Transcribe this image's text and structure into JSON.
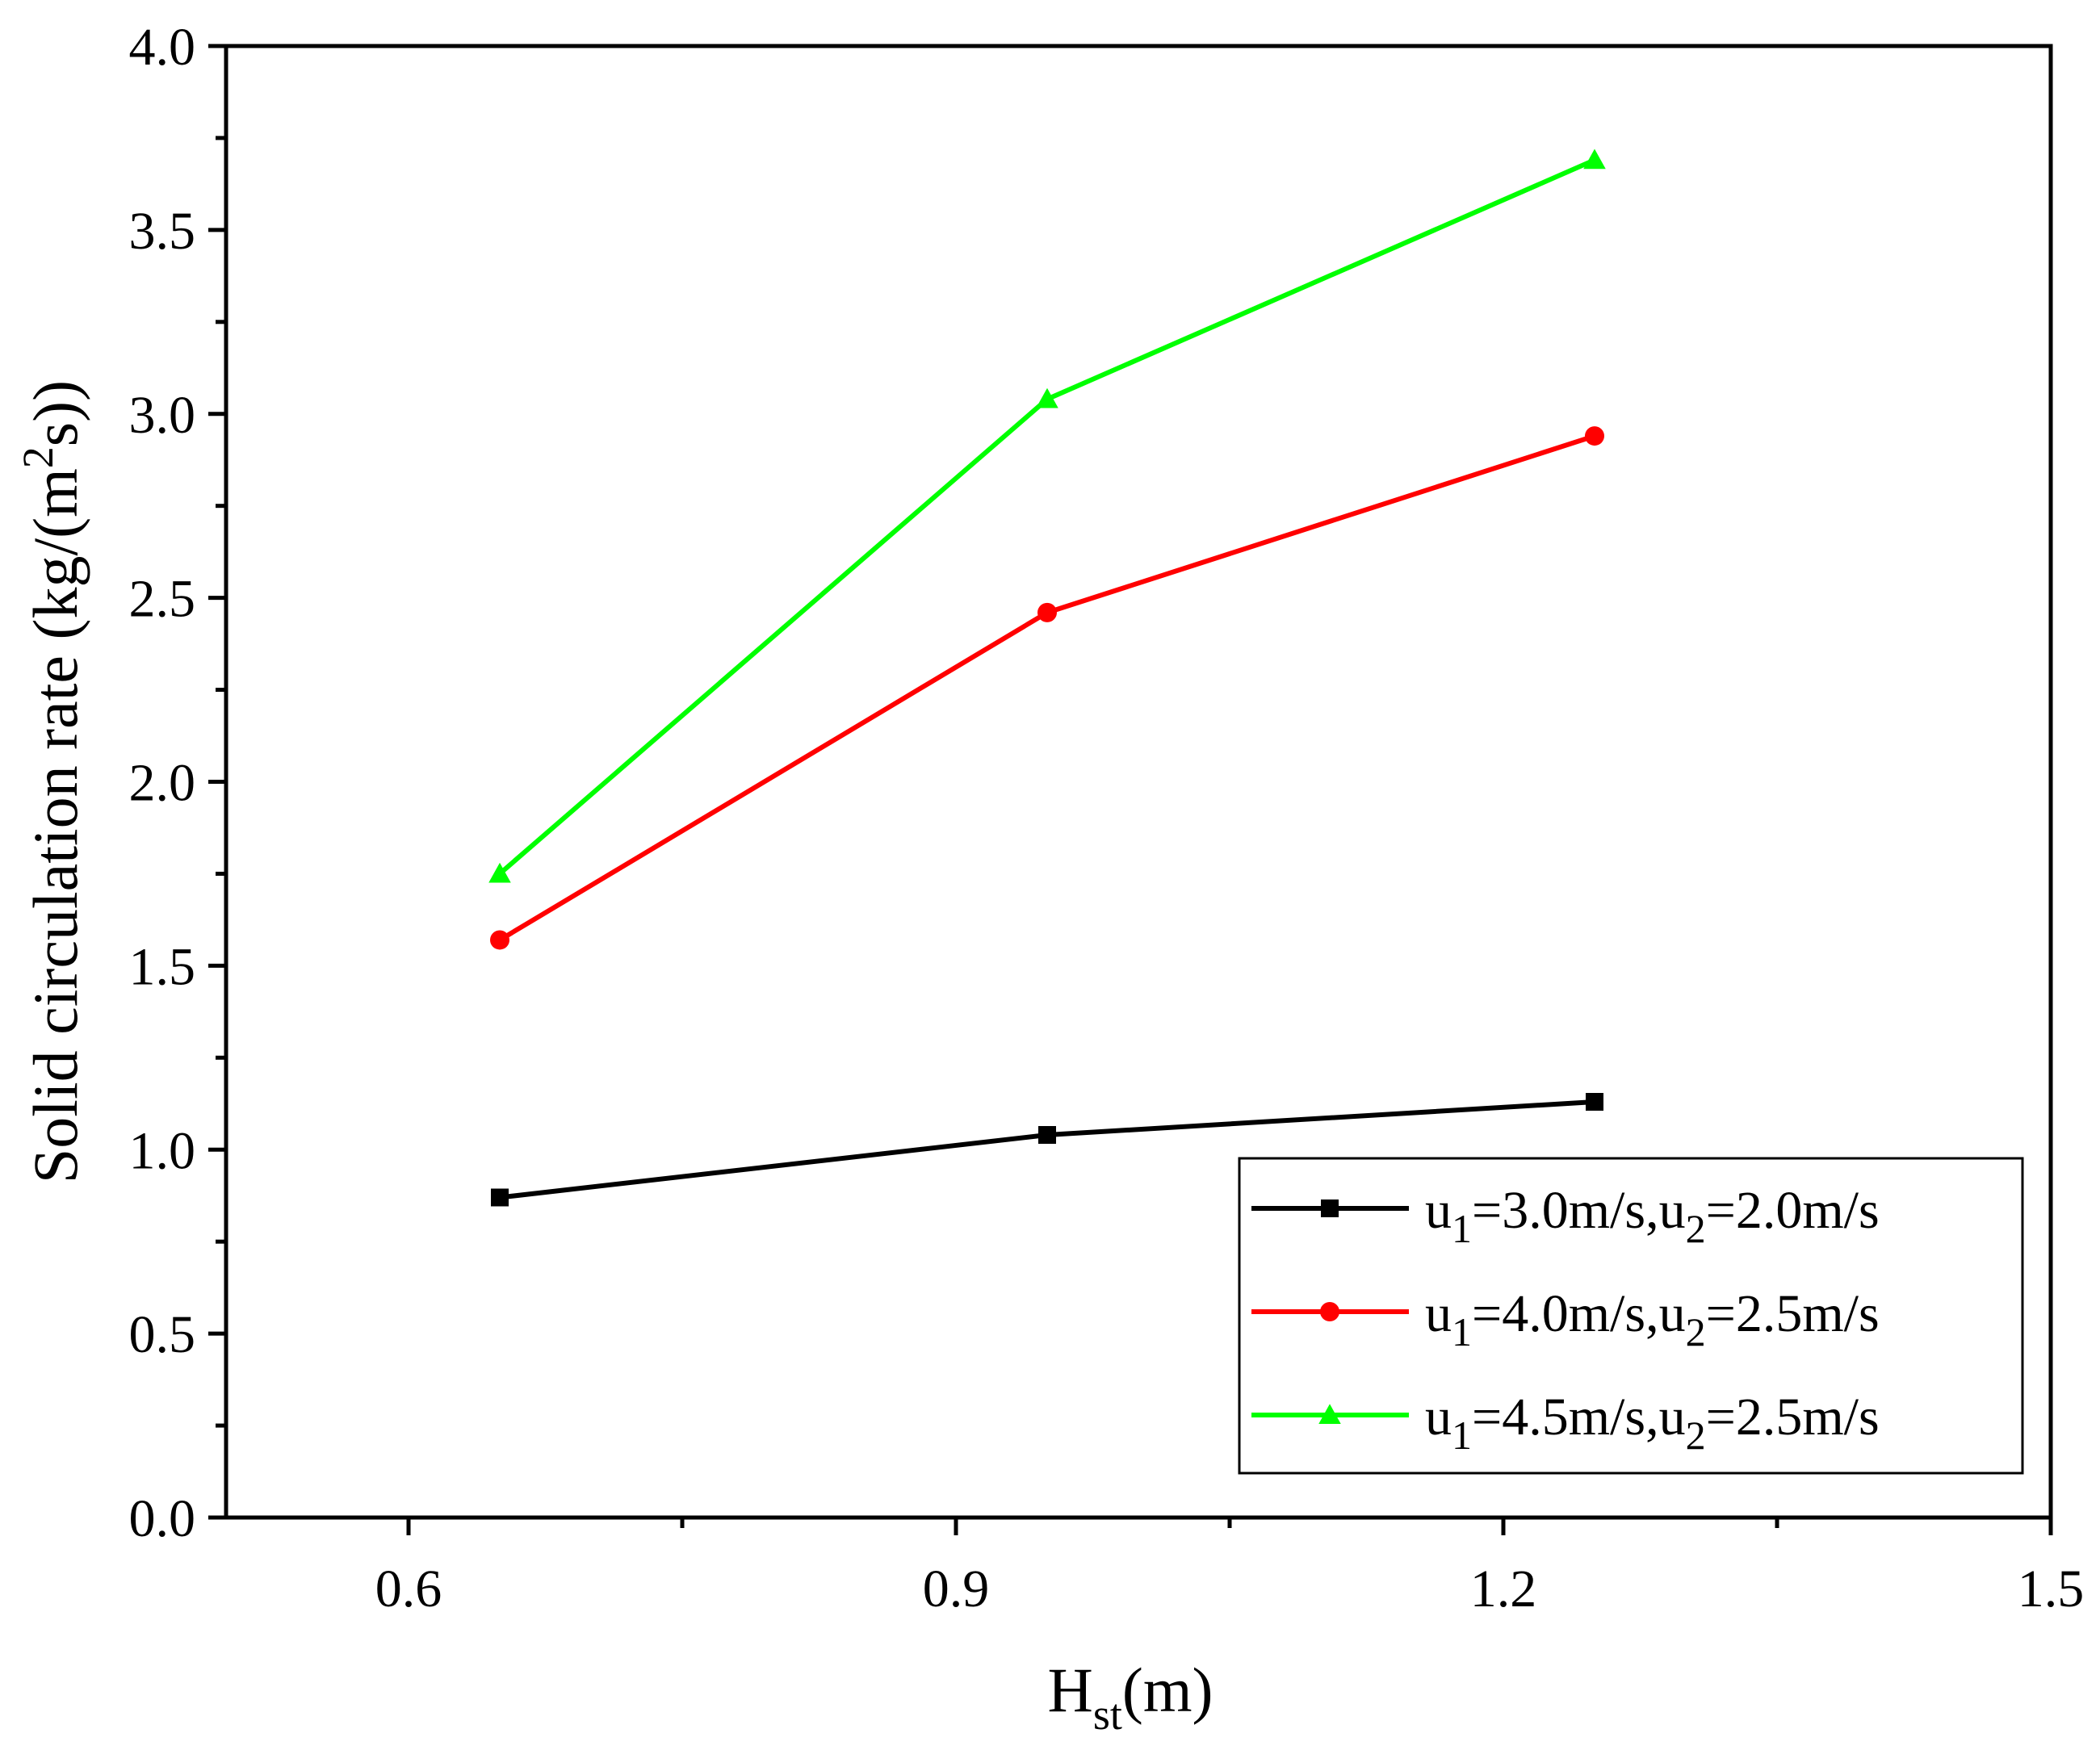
{
  "chart_data": {
    "type": "line",
    "title": "",
    "xlabel": "H",
    "xlabel_sub": "st",
    "xlabel_unit": "(m)",
    "ylabel_parts": [
      "Solid circulation rate (kg/(m",
      "2",
      "s))"
    ],
    "xlim": [
      0.5,
      1.5
    ],
    "ylim": [
      0.0,
      4.0
    ],
    "x_major_ticks": [
      0.6,
      0.9,
      1.2,
      1.5
    ],
    "x_tick_labels": [
      "0.6",
      "0.9",
      "1.2",
      "1.5"
    ],
    "x_minor_ticks": [
      0.75,
      1.05,
      1.35
    ],
    "y_major_ticks": [
      0.0,
      0.5,
      1.0,
      1.5,
      2.0,
      2.5,
      3.0,
      3.5,
      4.0
    ],
    "y_tick_labels": [
      "0.0",
      "0.5",
      "1.0",
      "1.5",
      "2.0",
      "2.5",
      "3.0",
      "3.5",
      "4.0"
    ],
    "y_minor_ticks": [
      0.25,
      0.75,
      1.25,
      1.75,
      2.25,
      2.75,
      3.25,
      3.75
    ],
    "grid": false,
    "legend_position": "bottom-right",
    "series": [
      {
        "name": "u1=3.0m/s,u2=2.0m/s",
        "label_parts": [
          "u",
          "1",
          "=3.0m/s,u",
          "2",
          "=2.0m/s"
        ],
        "color": "#000000",
        "marker": "square",
        "x": [
          0.65,
          0.95,
          1.25
        ],
        "values": [
          0.87,
          1.04,
          1.13
        ]
      },
      {
        "name": "u1=4.0m/s,u2=2.5m/s",
        "label_parts": [
          "u",
          "1",
          "=4.0m/s,u",
          "2",
          "=2.5m/s"
        ],
        "color": "#ff0000",
        "marker": "circle",
        "x": [
          0.65,
          0.95,
          1.25
        ],
        "values": [
          1.57,
          2.46,
          2.94
        ]
      },
      {
        "name": "u1=4.5m/s,u2=2.5m/s",
        "label_parts": [
          "u",
          "1",
          "=4.5m/s,u",
          "2",
          "=2.5m/s"
        ],
        "color": "#00ff00",
        "marker": "triangle",
        "x": [
          0.65,
          0.95,
          1.25
        ],
        "values": [
          1.75,
          3.04,
          3.69
        ]
      }
    ]
  }
}
